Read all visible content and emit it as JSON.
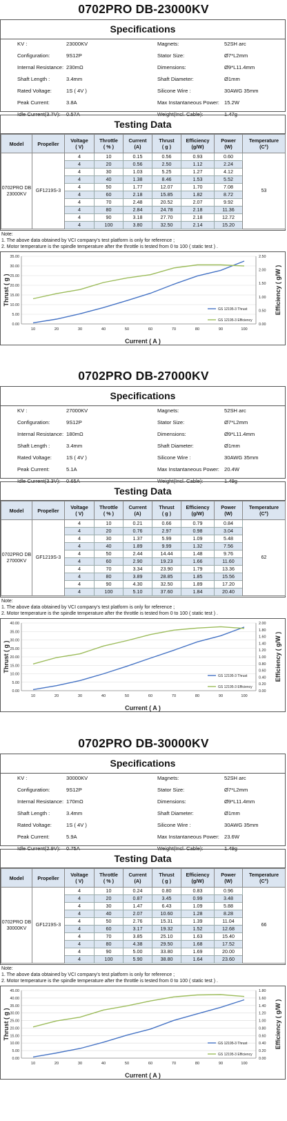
{
  "colors": {
    "thrust": "#4472c4",
    "efficiency": "#9bbb59",
    "header_bg": "#dbe5f1",
    "zebra": "#dbe5f1"
  },
  "common": {
    "specs_title": "Specifications",
    "testing_title": "Testing Data",
    "headers": [
      "Model",
      "Propeller",
      "Voltage\n( V)",
      "Throttle\n( % )",
      "Current\n(A)",
      "Thrust\n( g )",
      "Efficiency\n(g/W)",
      "Power\n(W)",
      "Temperature\n(C°)"
    ],
    "notes": [
      "Note:",
      "1.  The above data obtained by VCI company's test platform is only for reference ;",
      "2.  Motor temperature is the spindle temperature after the throttle is tested from 0 to 100  ( static test ) ."
    ],
    "legend_thrust": "GS 12195-3 Thrust",
    "legend_efficiency": "GS 12195-3 Efficiency",
    "xlabel": "Current ( A )",
    "ylabel_left": "Thrust ( g )",
    "ylabel_right": "Efficiency ( g/W )",
    "xticks": [
      "10",
      "20",
      "30",
      "40",
      "50",
      "60",
      "70",
      "80",
      "90",
      "100"
    ]
  },
  "motors": [
    {
      "title": "0702PRO DB-23000KV",
      "specs_left": [
        [
          "KV :",
          "23000KV"
        ],
        [
          "Configuration:",
          "9S12P"
        ],
        [
          "Internal Resistance:",
          "230mΩ"
        ],
        [
          "Shaft Length :",
          "3.4mm"
        ],
        [
          "Rated Voltage:",
          "1S ( 4V )"
        ],
        [
          "Peak Current:",
          "3.8A"
        ],
        [
          "Idle Current(3.7V):",
          "0.57A"
        ]
      ],
      "specs_right": [
        [
          "Magnets:",
          "52SH   arc"
        ],
        [
          "Stator Size:",
          "Ø7*L2mm"
        ],
        [
          "Dimensions:",
          "Ø9*L11.4mm"
        ],
        [
          "Shaft Diameter:",
          "Ø1mm"
        ],
        [
          "Silicone Wire :",
          "30AWG 35mm"
        ],
        [
          "Max Instantaneous Power:",
          "15.2W"
        ],
        [
          "Weight(Incl. Cable):",
          "1.47g"
        ]
      ],
      "model": "0702PRO DB\n23000KV",
      "propeller": "GF1219S-3",
      "temperature": "53",
      "rows": [
        [
          "4",
          "10",
          "0.15",
          "0.56",
          "0.93",
          "0.60"
        ],
        [
          "4",
          "20",
          "0.56",
          "2.50",
          "1.12",
          "2.24"
        ],
        [
          "4",
          "30",
          "1.03",
          "5.25",
          "1.27",
          "4.12"
        ],
        [
          "4",
          "40",
          "1.38",
          "8.46",
          "1.53",
          "5.52"
        ],
        [
          "4",
          "50",
          "1.77",
          "12.07",
          "1.70",
          "7.08"
        ],
        [
          "4",
          "60",
          "2.18",
          "15.85",
          "1.82",
          "8.72"
        ],
        [
          "4",
          "70",
          "2.48",
          "20.52",
          "2.07",
          "9.92"
        ],
        [
          "4",
          "80",
          "2.84",
          "24.78",
          "2.18",
          "11.36"
        ],
        [
          "4",
          "90",
          "3.18",
          "27.70",
          "2.18",
          "12.72"
        ],
        [
          "4",
          "100",
          "3.80",
          "32.50",
          "2.14",
          "15.20"
        ]
      ],
      "chart_data": {
        "type": "line",
        "x": [
          10,
          20,
          30,
          40,
          50,
          60,
          70,
          80,
          90,
          100
        ],
        "xlabel": "Current ( A )",
        "series": [
          {
            "name": "GS 12195-3 Thrust",
            "axis": "left",
            "values": [
              0.56,
              2.5,
              5.25,
              8.46,
              12.07,
              15.85,
              20.52,
              24.78,
              27.7,
              32.5
            ]
          },
          {
            "name": "GS 12195-3 Efficiency",
            "axis": "right",
            "values": [
              0.93,
              1.12,
              1.27,
              1.53,
              1.7,
              1.82,
              2.07,
              2.18,
              2.18,
              2.14
            ]
          }
        ],
        "ylabel_left": "Thrust ( g )",
        "ylabel_right": "Efficiency ( g/W )",
        "ylim_left": [
          0,
          35
        ],
        "yticks_left": [
          "0.00",
          "5.00",
          "10.00",
          "15.00",
          "20.00",
          "25.00",
          "30.00",
          "35.00"
        ],
        "ylim_right": [
          0,
          2.5
        ],
        "yticks_right": [
          "0.00",
          "0.50",
          "1.00",
          "1.50",
          "2.00",
          "2.50"
        ],
        "grid": true,
        "legend": "bottom-right"
      }
    },
    {
      "title": "0702PRO DB-27000KV",
      "specs_left": [
        [
          "KV :",
          "27000KV"
        ],
        [
          "Configuration:",
          "9S12P"
        ],
        [
          "Internal Resistance:",
          "180mΩ"
        ],
        [
          "Shaft Length :",
          "3.4mm"
        ],
        [
          "Rated Voltage:",
          "1S ( 4V )"
        ],
        [
          "Peak Current:",
          "5.1A"
        ],
        [
          "Idle Current(3.3V):",
          "0.65A"
        ]
      ],
      "specs_right": [
        [
          "Magnets:",
          "52SH   arc"
        ],
        [
          "Stator Size:",
          "Ø7*L2mm"
        ],
        [
          "Dimensions:",
          "Ø9*L11.4mm"
        ],
        [
          "Shaft Diameter:",
          "Ø1mm"
        ],
        [
          "Silicone Wire :",
          "30AWG 35mm"
        ],
        [
          "Max Instantaneous Power:",
          "20.4W"
        ],
        [
          "Weight(Incl. Cable):",
          "1.49g"
        ]
      ],
      "model": "0702PRO DB\n27000KV",
      "propeller": "GF1219S-3",
      "temperature": "62",
      "rows": [
        [
          "4",
          "10",
          "0.21",
          "0.66",
          "0.79",
          "0.84"
        ],
        [
          "4",
          "20",
          "0.76",
          "2.97",
          "0.98",
          "3.04"
        ],
        [
          "4",
          "30",
          "1.37",
          "5.99",
          "1.09",
          "5.48"
        ],
        [
          "4",
          "40",
          "1.89",
          "9.99",
          "1.32",
          "7.56"
        ],
        [
          "4",
          "50",
          "2.44",
          "14.44",
          "1.48",
          "9.76"
        ],
        [
          "4",
          "60",
          "2.90",
          "19.23",
          "1.66",
          "11.60"
        ],
        [
          "4",
          "70",
          "3.34",
          "23.90",
          "1.79",
          "13.36"
        ],
        [
          "4",
          "80",
          "3.89",
          "28.85",
          "1.85",
          "15.56"
        ],
        [
          "4",
          "90",
          "4.30",
          "32.50",
          "1.89",
          "17.20"
        ],
        [
          "4",
          "100",
          "5.10",
          "37.60",
          "1.84",
          "20.40"
        ]
      ],
      "chart_data": {
        "type": "line",
        "x": [
          10,
          20,
          30,
          40,
          50,
          60,
          70,
          80,
          90,
          100
        ],
        "xlabel": "Current ( A )",
        "series": [
          {
            "name": "GS 12195-3 Thrust",
            "axis": "left",
            "values": [
              0.66,
              2.97,
              5.99,
              9.99,
              14.44,
              19.23,
              23.9,
              28.85,
              32.5,
              37.6
            ]
          },
          {
            "name": "GS 12195-3 Efficiency",
            "axis": "right",
            "values": [
              0.79,
              0.98,
              1.09,
              1.32,
              1.48,
              1.66,
              1.79,
              1.85,
              1.89,
              1.84
            ]
          }
        ],
        "ylabel_left": "Thrust ( g )",
        "ylabel_right": "Efficiency ( g/W )",
        "ylim_left": [
          0,
          40
        ],
        "yticks_left": [
          "0.00",
          "5.00",
          "10.00",
          "15.00",
          "20.00",
          "25.00",
          "30.00",
          "35.00",
          "40.00"
        ],
        "ylim_right": [
          0,
          2.0
        ],
        "yticks_right": [
          "0.00",
          "0.20",
          "0.40",
          "0.60",
          "0.80",
          "1.00",
          "1.20",
          "1.40",
          "1.60",
          "1.80",
          "2.00"
        ],
        "grid": true,
        "legend": "bottom-right"
      }
    },
    {
      "title": "0702PRO DB-30000KV",
      "specs_left": [
        [
          "KV :",
          "30000KV"
        ],
        [
          "Configuration:",
          "9S12P"
        ],
        [
          "Internal Resistance:",
          "170mΩ"
        ],
        [
          "Shaft Length :",
          "3.4mm"
        ],
        [
          "Rated Voltage:",
          "1S ( 4V )"
        ],
        [
          "Peak Current:",
          "5.9A"
        ],
        [
          "Idle Current(2.9V):",
          "0.75A"
        ]
      ],
      "specs_right": [
        [
          "Magnets:",
          "52SH   arc"
        ],
        [
          "Stator Size:",
          "Ø7*L2mm"
        ],
        [
          "Dimensions:",
          "Ø9*L11.4mm"
        ],
        [
          "Shaft Diameter:",
          "Ø1mm"
        ],
        [
          "Silicone Wire :",
          "30AWG 35mm"
        ],
        [
          "Max Instantaneous Power:",
          "23.6W"
        ],
        [
          "Weight(Incl. Cable):",
          "1.49g"
        ]
      ],
      "model": "0702PRO DB\n30000KV",
      "propeller": "GF1219S-3",
      "temperature": "66",
      "rows": [
        [
          "4",
          "10",
          "0.24",
          "0.80",
          "0.83",
          "0.96"
        ],
        [
          "4",
          "20",
          "0.87",
          "3.45",
          "0.99",
          "3.48"
        ],
        [
          "4",
          "30",
          "1.47",
          "6.43",
          "1.09",
          "5.88"
        ],
        [
          "4",
          "40",
          "2.07",
          "10.60",
          "1.28",
          "8.28"
        ],
        [
          "4",
          "50",
          "2.76",
          "15.31",
          "1.39",
          "11.04"
        ],
        [
          "4",
          "60",
          "3.17",
          "19.32",
          "1.52",
          "12.68"
        ],
        [
          "4",
          "70",
          "3.85",
          "25.10",
          "1.63",
          "15.40"
        ],
        [
          "4",
          "80",
          "4.38",
          "29.50",
          "1.68",
          "17.52"
        ],
        [
          "4",
          "90",
          "5.00",
          "33.80",
          "1.69",
          "20.00"
        ],
        [
          "4",
          "100",
          "5.90",
          "38.80",
          "1.64",
          "23.60"
        ]
      ],
      "chart_data": {
        "type": "line",
        "x": [
          10,
          20,
          30,
          40,
          50,
          60,
          70,
          80,
          90,
          100
        ],
        "xlabel": "Current ( A )",
        "series": [
          {
            "name": "GS 12195-3 Thrust",
            "axis": "left",
            "values": [
              0.8,
              3.45,
              6.43,
              10.6,
              15.31,
              19.32,
              25.1,
              29.5,
              33.8,
              38.8
            ]
          },
          {
            "name": "GS 12195-3 Efficiency",
            "axis": "right",
            "values": [
              0.83,
              0.99,
              1.09,
              1.28,
              1.39,
              1.52,
              1.63,
              1.68,
              1.69,
              1.64
            ]
          }
        ],
        "ylabel_left": "Thrust ( g )",
        "ylabel_right": "Efficiency ( g/W )",
        "ylim_left": [
          0,
          45
        ],
        "yticks_left": [
          "0.00",
          "5.00",
          "10.00",
          "15.00",
          "20.00",
          "25.00",
          "30.00",
          "35.00",
          "40.00",
          "45.00"
        ],
        "ylim_right": [
          0,
          1.8
        ],
        "yticks_right": [
          "0.00",
          "0.20",
          "0.40",
          "0.60",
          "0.80",
          "1.00",
          "1.20",
          "1.40",
          "1.60",
          "1.80"
        ],
        "grid": true,
        "legend": "bottom-right"
      }
    }
  ]
}
